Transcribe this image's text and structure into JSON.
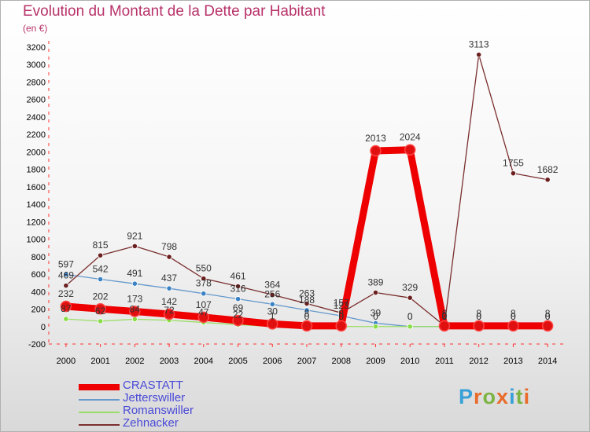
{
  "title": "Evolution du Montant de la Dette par Habitant",
  "subtitle": "(en €)",
  "logo": {
    "letters": [
      "P",
      "r",
      "o",
      "x",
      "i",
      "t",
      "i"
    ],
    "colors": [
      "#3aa0d8",
      "#e86b2a",
      "#7cb342",
      "#e86b2a",
      "#3aa0d8",
      "#7cb342",
      "#e86b2a"
    ]
  },
  "chart_data": {
    "type": "line",
    "title": "Evolution du Montant de la Dette par Habitant",
    "subtitle": "(en €)",
    "x": [
      "2000",
      "2001",
      "2002",
      "2003",
      "2004",
      "2005",
      "2006",
      "2007",
      "2008",
      "2009",
      "2010",
      "2011",
      "2012",
      "2013",
      "2014"
    ],
    "ylim": [
      -200,
      3200
    ],
    "yticks": [
      -200,
      0,
      200,
      400,
      600,
      800,
      1000,
      1200,
      1400,
      1600,
      1800,
      2000,
      2200,
      2400,
      2600,
      2800,
      3000,
      3200
    ],
    "grid": false,
    "legend_position": "bottom-left",
    "series": [
      {
        "name": "CRASTATT",
        "color": "#ee0000",
        "marker": "#e01010",
        "bold": true,
        "values": [
          232,
          202,
          173,
          142,
          107,
          69,
          30,
          8,
          8,
          2013,
          2024,
          8,
          8,
          8,
          8
        ],
        "labels": [
          "232",
          "202",
          "173",
          "142",
          "107",
          "69",
          "30",
          "8",
          "8",
          "2013",
          "2024",
          "8",
          "8",
          "8",
          "8"
        ]
      },
      {
        "name": "Jetterswiller",
        "color": "#6699cc",
        "marker": "#3a82c4",
        "values": [
          597,
          542,
          491,
          437,
          378,
          316,
          256,
          188,
          123,
          39,
          0,
          0,
          0,
          0,
          0
        ],
        "labels": [
          "597",
          "542",
          "491",
          "437",
          "378",
          "316",
          "256",
          "188",
          "123",
          "39",
          "0",
          "0",
          "0",
          "0",
          "0"
        ]
      },
      {
        "name": "Romanswiller",
        "color": "#99dd66",
        "marker": "#88dd44",
        "values": [
          87,
          62,
          84,
          72,
          47,
          22,
          1,
          0,
          0,
          0,
          0,
          0,
          0,
          0,
          0
        ],
        "labels": [
          "87",
          "62",
          "84",
          "72",
          "47",
          "22",
          "1",
          "0",
          "0",
          "0",
          "0",
          "0",
          "0",
          "0",
          "0"
        ]
      },
      {
        "name": "Zehnacker",
        "color": "#7a2e2e",
        "marker": "#6b1f1f",
        "values": [
          469,
          815,
          921,
          798,
          550,
          461,
          364,
          263,
          157,
          389,
          329,
          9,
          3113,
          1755,
          1682
        ],
        "labels": [
          "469",
          "815",
          "921",
          "798",
          "550",
          "461",
          "364",
          "263",
          "157",
          "389",
          "329",
          "9",
          "3113",
          "1755",
          "1682"
        ]
      }
    ]
  }
}
